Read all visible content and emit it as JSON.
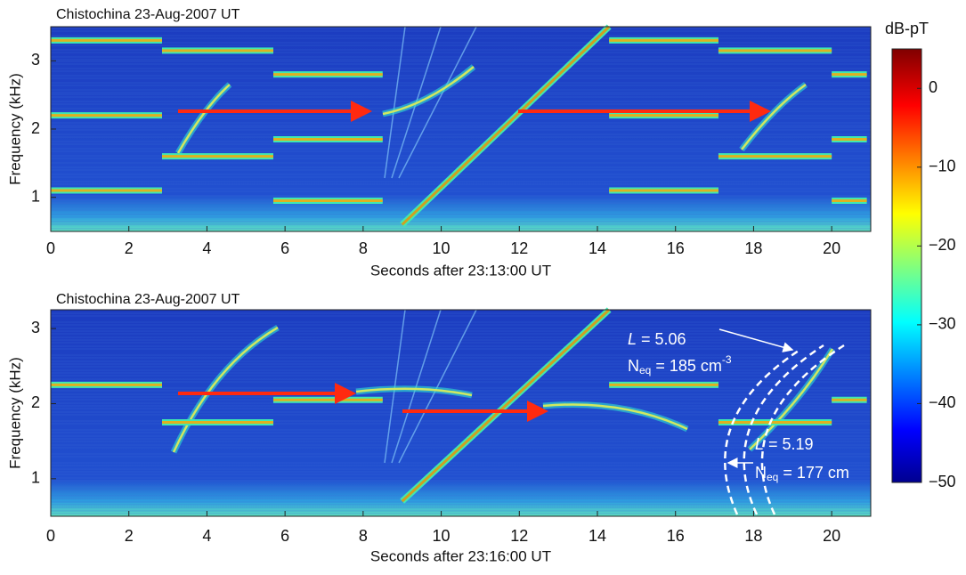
{
  "chart_data": [
    {
      "type": "spectrogram",
      "title": "Chistochina 23-Aug-2007 UT",
      "xlabel": "Seconds after 23:13:00 UT",
      "ylabel": "Frequency (kHz)",
      "xlim": [
        0,
        21
      ],
      "xticks": [
        0,
        2,
        4,
        6,
        8,
        10,
        12,
        14,
        16,
        18,
        20
      ],
      "ylim": [
        0.5,
        3.5
      ],
      "yticks": [
        1,
        2,
        3
      ],
      "tones": [
        [
          0,
          2.85,
          3.3
        ],
        [
          0,
          2.85,
          2.2
        ],
        [
          0,
          2.85,
          1.1
        ],
        [
          2.85,
          5.7,
          3.15
        ],
        [
          2.85,
          5.7,
          1.6
        ],
        [
          5.7,
          8.5,
          2.8
        ],
        [
          5.7,
          8.5,
          1.85
        ],
        [
          5.7,
          8.5,
          0.95
        ],
        [
          14.3,
          17.1,
          3.3
        ],
        [
          14.3,
          17.1,
          2.2
        ],
        [
          14.3,
          17.1,
          1.1
        ],
        [
          17.1,
          20,
          3.15
        ],
        [
          17.1,
          20,
          1.6
        ],
        [
          20,
          20.9,
          2.8
        ],
        [
          20,
          20.9,
          1.85
        ],
        [
          20,
          20.9,
          0.95
        ]
      ],
      "sweep": {
        "x": [
          9.0,
          14.3
        ],
        "y": [
          0.6,
          3.5
        ]
      }
    },
    {
      "type": "spectrogram",
      "title": "Chistochina 23-Aug-2007 UT",
      "xlabel": "Seconds after 23:16:00 UT",
      "ylabel": "Frequency (kHz)",
      "xlim": [
        0,
        21
      ],
      "xticks": [
        0,
        2,
        4,
        6,
        8,
        10,
        12,
        14,
        16,
        18,
        20
      ],
      "ylim": [
        0.5,
        3.25
      ],
      "yticks": [
        1,
        2,
        3
      ],
      "tones": [
        [
          0,
          2.85,
          2.25
        ],
        [
          2.85,
          5.7,
          1.75
        ],
        [
          5.7,
          8.5,
          2.05
        ],
        [
          14.3,
          17.1,
          2.25
        ],
        [
          17.1,
          20,
          1.75
        ],
        [
          20,
          20.9,
          2.05
        ]
      ],
      "sweep": {
        "x": [
          9.0,
          14.3
        ],
        "y": [
          0.7,
          3.25
        ]
      },
      "annotations": [
        {
          "var": "L",
          "rest": " = 5.06"
        },
        {
          "var": "N",
          "sub": "eq",
          "rest": " = 185 cm",
          "sup": "-3"
        },
        {
          "var": "L",
          "rest": " = 5.19"
        },
        {
          "var": "N",
          "sub": "eq",
          "rest": " = 177 cm"
        }
      ]
    }
  ],
  "colorbar": {
    "label": "dB-pT",
    "clim": [
      -50,
      5
    ],
    "ticks": [
      0,
      {
        "value": -10,
        "label": "−10"
      },
      {
        "value": -20,
        "label": "−20"
      },
      {
        "value": -30,
        "label": "−30"
      },
      {
        "value": -40,
        "label": "−40"
      },
      {
        "value": -50,
        "label": "−50"
      }
    ]
  }
}
